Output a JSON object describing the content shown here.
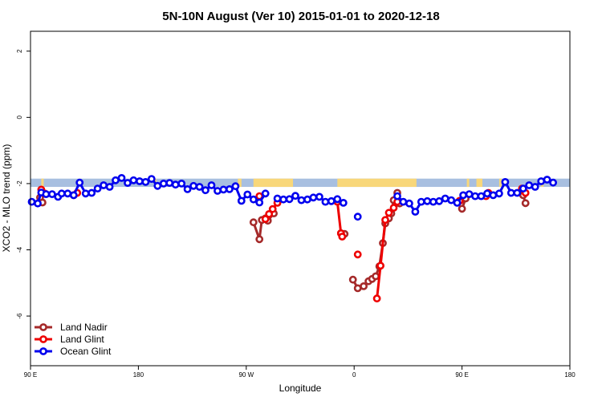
{
  "chart_data": {
    "type": "line",
    "title": "5N-10N August (Ver 10)   2015-01-01 to 2020-12-18",
    "xlabel": "Longitude",
    "ylabel": "XCO2 - MLO trend (ppm)",
    "x_range_deg": [
      90,
      540
    ],
    "ylim": [
      -7.5,
      2.6
    ],
    "x_ticks": [
      {
        "value": 90,
        "label": "90 E"
      },
      {
        "value": 180,
        "label": "180"
      },
      {
        "value": 270,
        "label": "90 W"
      },
      {
        "value": 360,
        "label": "0"
      },
      {
        "value": 450,
        "label": "90 E"
      },
      {
        "value": 540,
        "label": "180"
      }
    ],
    "y_ticks": [
      {
        "value": 2,
        "label": "2"
      },
      {
        "value": 0,
        "label": "0"
      },
      {
        "value": -2,
        "label": "-2"
      },
      {
        "value": -4,
        "label": "-4"
      },
      {
        "value": -6,
        "label": "-6"
      }
    ],
    "grid": false,
    "legend_position": "bottom-left",
    "land_band": {
      "y_top": -1.85,
      "y_bottom": -2.1,
      "ocean_color": "#a8bfe0",
      "land_color": "#f8d77a",
      "land_segments": [
        [
          99,
          101
        ],
        [
          193,
          195
        ],
        [
          263,
          266
        ],
        [
          276,
          309
        ],
        [
          346,
          412
        ],
        [
          454,
          456
        ],
        [
          462,
          467
        ],
        [
          481,
          483
        ],
        [
          516,
          518
        ]
      ]
    },
    "series": [
      {
        "name": "Land Nadir",
        "color": "#a52a2a",
        "segments": [
          [
            [
              98,
              -2.42
            ],
            [
              100,
              -2.57
            ]
          ],
          [
            [
              276,
              -3.17
            ],
            [
              281,
              -3.68
            ],
            [
              283,
              -3.1
            ],
            [
              286,
              -3.05
            ],
            [
              288,
              -3.12
            ],
            [
              293,
              -2.9
            ]
          ],
          [
            [
              368,
              -5.1
            ],
            [
              372,
              -4.95
            ],
            [
              375,
              -4.88
            ],
            [
              378,
              -4.8
            ],
            [
              381,
              -4.5
            ],
            [
              384,
              -3.8
            ],
            [
              386,
              -3.2
            ],
            [
              389,
              -3.05
            ],
            [
              391,
              -2.9
            ],
            [
              393,
              -2.5
            ],
            [
              396,
              -2.28
            ],
            [
              398,
              -2.6
            ]
          ],
          [
            [
              450,
              -2.76
            ],
            [
              453,
              -2.45
            ]
          ],
          [
            [
              501,
              -2.35
            ],
            [
              503,
              -2.59
            ]
          ],
          [
            [
              363,
              -5.16
            ],
            [
              359,
              -4.9
            ]
          ],
          [
            [
              352,
              -3.52
            ],
            [
              349,
              -3.5
            ]
          ]
        ]
      },
      {
        "name": "Land Glint",
        "color": "#ee0000",
        "segments": [
          [
            [
              99,
              -2.18
            ],
            [
              102,
              -2.3
            ]
          ],
          [
            [
              126,
              -2.35
            ],
            [
              129,
              -2.28
            ]
          ],
          [
            [
              281,
              -2.38
            ]
          ],
          [
            [
              286,
              -3.07
            ],
            [
              289,
              -2.92
            ],
            [
              292,
              -2.77
            ],
            [
              296,
              -2.58
            ]
          ],
          [
            [
              346,
              -2.55
            ],
            [
              349,
              -3.5
            ],
            [
              350,
              -3.6
            ]
          ],
          [
            [
              363,
              -4.14
            ]
          ],
          [
            [
              379,
              -5.47
            ],
            [
              382,
              -4.48
            ],
            [
              386,
              -3.1
            ],
            [
              389,
              -2.88
            ],
            [
              393,
              -2.73
            ],
            [
              396,
              -2.55
            ]
          ],
          [
            [
              448,
              -2.52
            ]
          ],
          [
            [
              470,
              -2.38
            ],
            [
              472,
              -2.28
            ]
          ],
          [
            [
              500,
              -2.15
            ],
            [
              503,
              -2.28
            ]
          ]
        ]
      },
      {
        "name": "Ocean Glint",
        "color": "#0000ee",
        "segments": [
          [
            [
              91,
              -2.55
            ],
            [
              96,
              -2.6
            ],
            [
              99,
              -2.27
            ],
            [
              103,
              -2.32
            ],
            [
              108,
              -2.32
            ],
            [
              113,
              -2.4
            ],
            [
              116,
              -2.3
            ],
            [
              121,
              -2.3
            ],
            [
              126,
              -2.35
            ],
            [
              131,
              -1.97
            ],
            [
              136,
              -2.3
            ],
            [
              141,
              -2.28
            ],
            [
              146,
              -2.15
            ],
            [
              151,
              -2.05
            ],
            [
              156,
              -2.1
            ],
            [
              161,
              -1.9
            ],
            [
              166,
              -1.83
            ],
            [
              171,
              -1.98
            ],
            [
              176,
              -1.9
            ],
            [
              181,
              -1.93
            ],
            [
              186,
              -1.95
            ],
            [
              191,
              -1.86
            ],
            [
              196,
              -2.07
            ],
            [
              201,
              -2.0
            ],
            [
              206,
              -1.98
            ],
            [
              211,
              -2.03
            ],
            [
              216,
              -2.0
            ],
            [
              221,
              -2.17
            ],
            [
              226,
              -2.07
            ],
            [
              231,
              -2.1
            ],
            [
              236,
              -2.2
            ],
            [
              241,
              -2.05
            ],
            [
              246,
              -2.22
            ],
            [
              251,
              -2.18
            ],
            [
              256,
              -2.17
            ],
            [
              261,
              -2.08
            ],
            [
              266,
              -2.52
            ],
            [
              271,
              -2.33
            ],
            [
              276,
              -2.48
            ],
            [
              281,
              -2.57
            ],
            [
              286,
              -2.3
            ]
          ],
          [
            [
              296,
              -2.45
            ],
            [
              301,
              -2.48
            ],
            [
              306,
              -2.47
            ],
            [
              311,
              -2.37
            ],
            [
              316,
              -2.5
            ],
            [
              321,
              -2.48
            ],
            [
              326,
              -2.42
            ],
            [
              331,
              -2.4
            ],
            [
              336,
              -2.55
            ],
            [
              341,
              -2.53
            ],
            [
              346,
              -2.47
            ],
            [
              351,
              -2.58
            ]
          ],
          [
            [
              363,
              -3.0
            ]
          ],
          [
            [
              396,
              -2.38
            ],
            [
              401,
              -2.55
            ],
            [
              406,
              -2.6
            ],
            [
              411,
              -2.85
            ],
            [
              416,
              -2.55
            ],
            [
              421,
              -2.53
            ],
            [
              426,
              -2.55
            ],
            [
              431,
              -2.53
            ],
            [
              436,
              -2.45
            ],
            [
              441,
              -2.5
            ],
            [
              446,
              -2.58
            ],
            [
              451,
              -2.35
            ],
            [
              456,
              -2.32
            ],
            [
              461,
              -2.38
            ],
            [
              466,
              -2.38
            ],
            [
              471,
              -2.3
            ],
            [
              476,
              -2.35
            ],
            [
              481,
              -2.3
            ],
            [
              486,
              -1.95
            ],
            [
              491,
              -2.28
            ],
            [
              496,
              -2.28
            ],
            [
              501,
              -2.15
            ],
            [
              506,
              -2.05
            ],
            [
              511,
              -2.1
            ],
            [
              516,
              -1.93
            ],
            [
              521,
              -1.88
            ],
            [
              526,
              -1.97
            ]
          ]
        ]
      }
    ]
  }
}
